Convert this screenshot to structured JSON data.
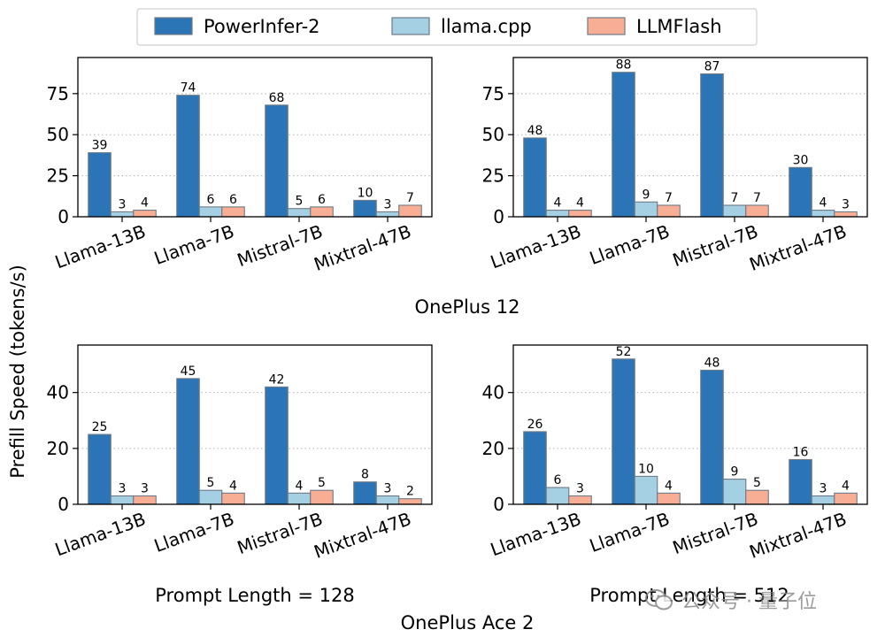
{
  "figure": {
    "ylabel": "Prefill Speed (tokens/s)",
    "group_labels": [
      "OnePlus 12",
      "OnePlus Ace 2"
    ],
    "column_labels": [
      "Prompt Length = 128",
      "Prompt Length = 512"
    ],
    "legend": {
      "placement": "top-center"
    },
    "watermark": {
      "text": "公众号 · 量子位",
      "icon": "wechat-logo-icon"
    }
  },
  "chart_data": [
    {
      "type": "bar",
      "panel": "OnePlus 12 / Prompt Length = 128",
      "categories": [
        "Llama-13B",
        "Llama-7B",
        "Mistral-7B",
        "Mixtral-47B"
      ],
      "series": [
        {
          "name": "PowerInfer-2",
          "color": "#2b74b6",
          "values": [
            39,
            74,
            68,
            10
          ]
        },
        {
          "name": "llama.cpp",
          "color": "#a5cfe2",
          "values": [
            3,
            6,
            5,
            3
          ]
        },
        {
          "name": "LLMFlash",
          "color": "#f7ae95",
          "values": [
            4,
            6,
            6,
            7
          ]
        }
      ],
      "yticks": [
        0,
        25,
        50,
        75
      ],
      "ylim": [
        0,
        97
      ],
      "grid": "y-dotted"
    },
    {
      "type": "bar",
      "panel": "OnePlus 12 / Prompt Length = 512",
      "categories": [
        "Llama-13B",
        "Llama-7B",
        "Mistral-7B",
        "Mixtral-47B"
      ],
      "series": [
        {
          "name": "PowerInfer-2",
          "color": "#2b74b6",
          "values": [
            48,
            88,
            87,
            30
          ]
        },
        {
          "name": "llama.cpp",
          "color": "#a5cfe2",
          "values": [
            4,
            9,
            7,
            4
          ]
        },
        {
          "name": "LLMFlash",
          "color": "#f7ae95",
          "values": [
            4,
            7,
            7,
            3
          ]
        }
      ],
      "yticks": [
        0,
        25,
        50,
        75
      ],
      "ylim": [
        0,
        97
      ],
      "grid": "y-dotted"
    },
    {
      "type": "bar",
      "panel": "OnePlus Ace 2 / Prompt Length = 128",
      "categories": [
        "Llama-13B",
        "Llama-7B",
        "Mistral-7B",
        "Mixtral-47B"
      ],
      "series": [
        {
          "name": "PowerInfer-2",
          "color": "#2b74b6",
          "values": [
            25,
            45,
            42,
            8
          ]
        },
        {
          "name": "llama.cpp",
          "color": "#a5cfe2",
          "values": [
            3,
            5,
            4,
            3
          ]
        },
        {
          "name": "LLMFlash",
          "color": "#f7ae95",
          "values": [
            3,
            4,
            5,
            2
          ]
        }
      ],
      "yticks": [
        0,
        20,
        40
      ],
      "ylim": [
        0,
        57
      ],
      "grid": "y-dotted"
    },
    {
      "type": "bar",
      "panel": "OnePlus Ace 2 / Prompt Length = 512",
      "categories": [
        "Llama-13B",
        "Llama-7B",
        "Mistral-7B",
        "Mixtral-47B"
      ],
      "series": [
        {
          "name": "PowerInfer-2",
          "color": "#2b74b6",
          "values": [
            26,
            52,
            48,
            16
          ]
        },
        {
          "name": "llama.cpp",
          "color": "#a5cfe2",
          "values": [
            6,
            10,
            9,
            3
          ]
        },
        {
          "name": "LLMFlash",
          "color": "#f7ae95",
          "values": [
            3,
            4,
            5,
            4
          ]
        }
      ],
      "yticks": [
        0,
        20,
        40
      ],
      "ylim": [
        0,
        57
      ],
      "grid": "y-dotted"
    }
  ]
}
